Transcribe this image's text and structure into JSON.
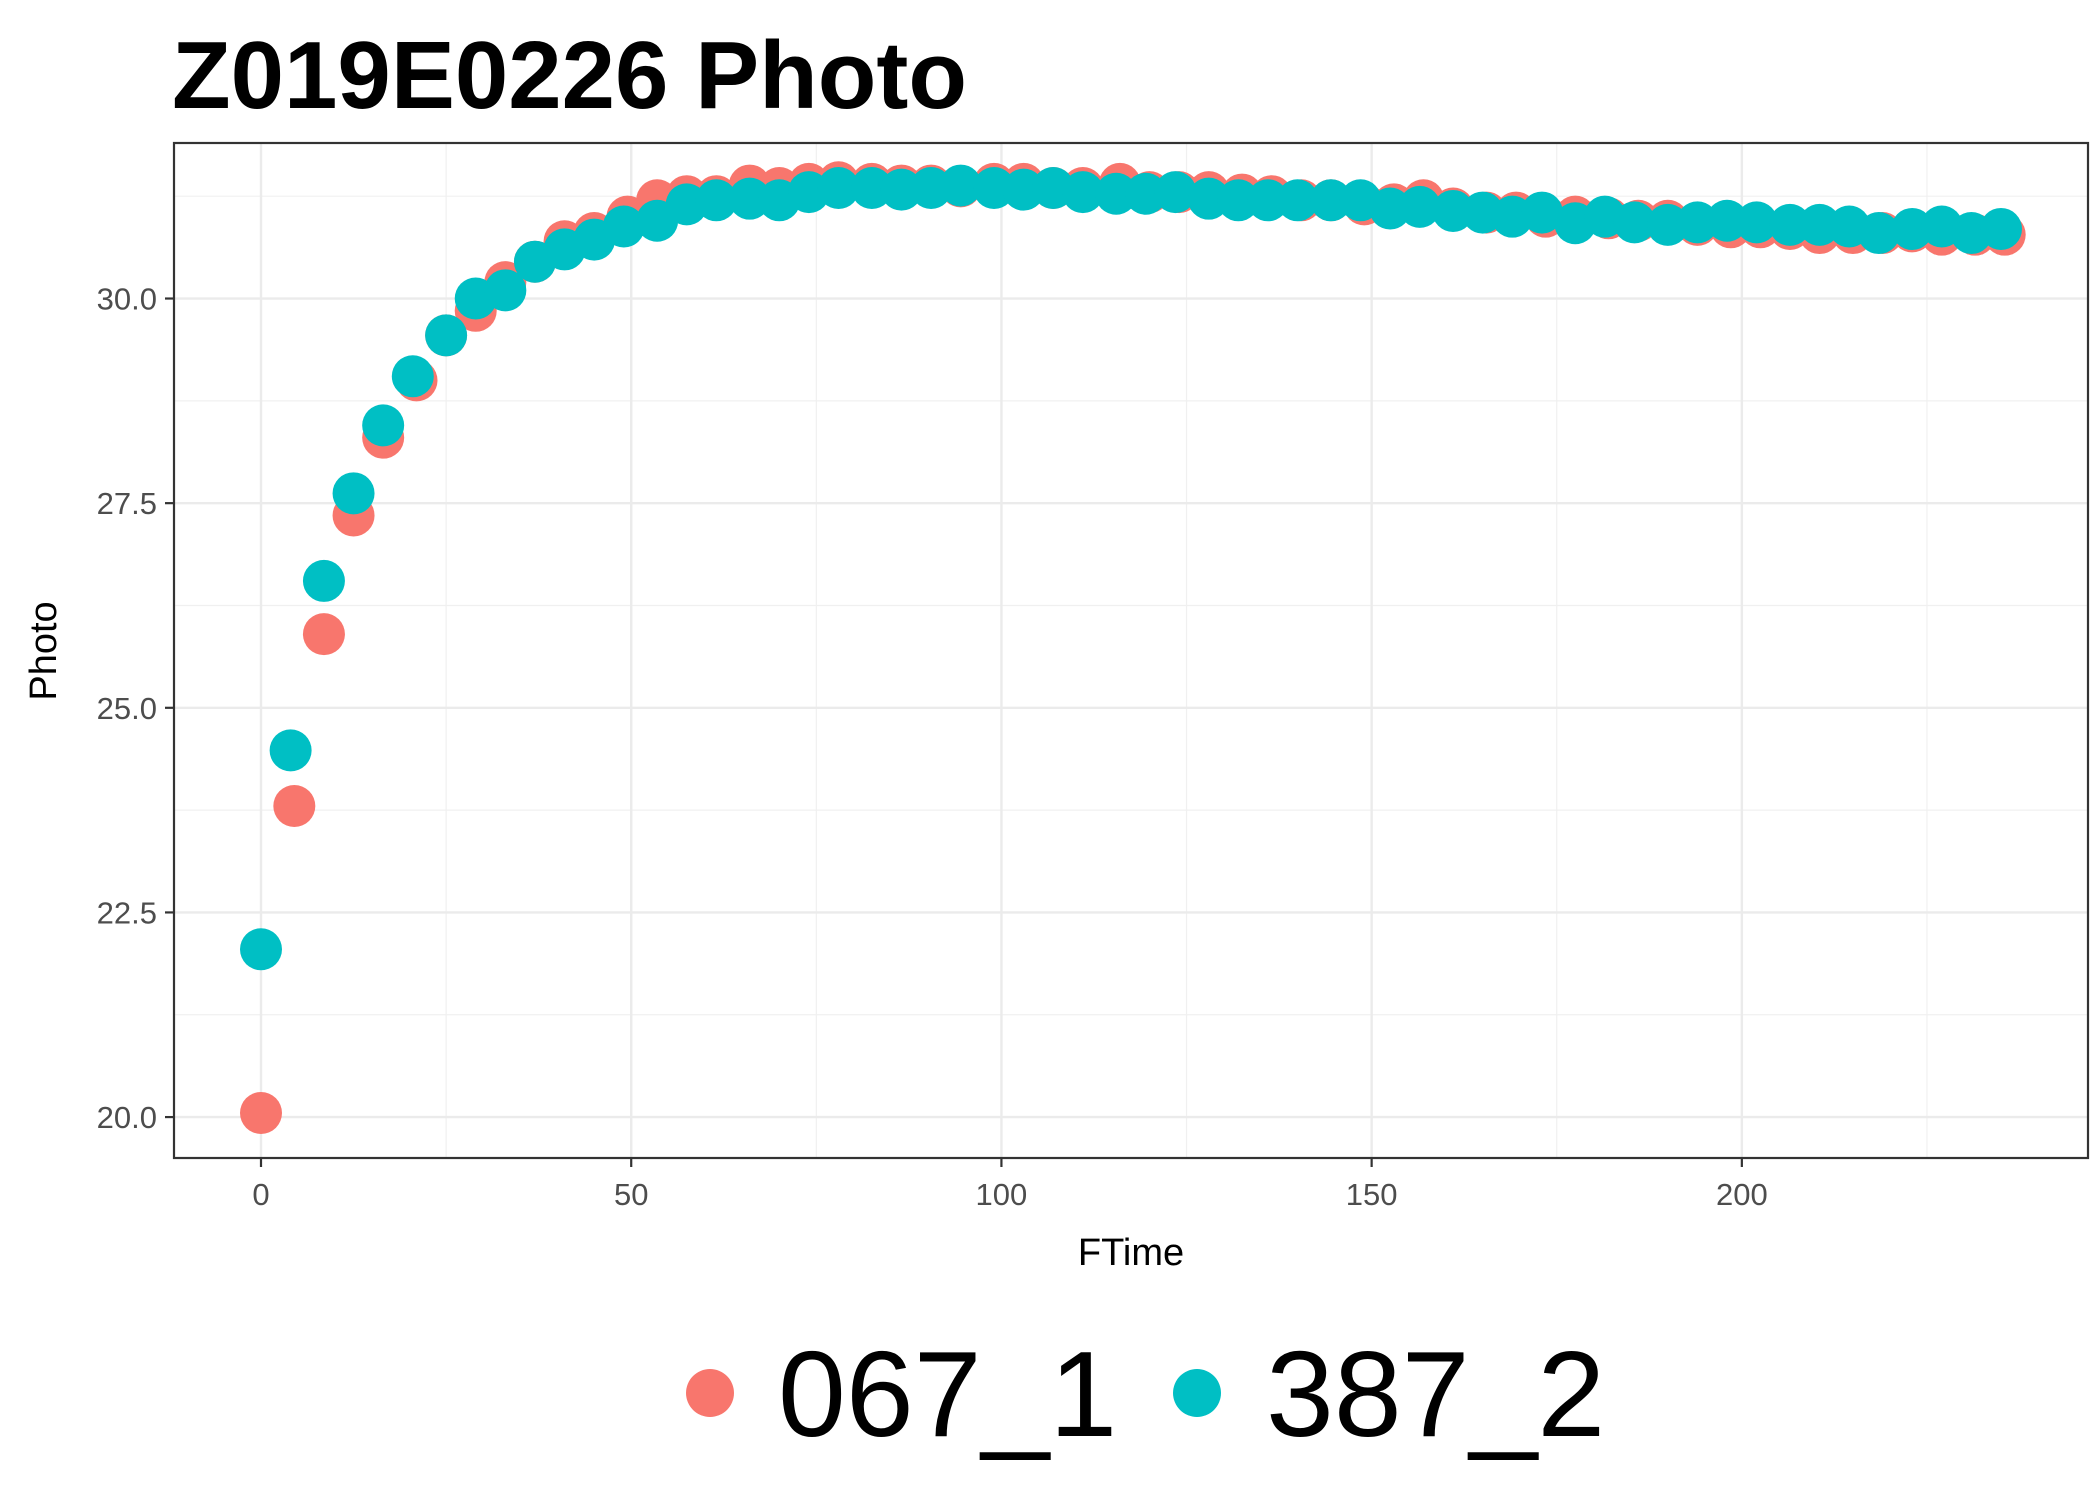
{
  "chart_data": {
    "type": "scatter",
    "title": "Z019E0226 Photo",
    "xlabel": "FTime",
    "ylabel": "Photo",
    "xlim": [
      -11.75,
      246.75
    ],
    "ylim": [
      19.5,
      31.9
    ],
    "x_ticks": [
      0,
      50,
      100,
      150,
      200
    ],
    "x_tick_labels": [
      "0",
      "50",
      "100",
      "150",
      "200"
    ],
    "y_ticks": [
      20.0,
      22.5,
      25.0,
      27.5,
      30.0
    ],
    "y_tick_labels": [
      "20.0",
      "22.5",
      "25.0",
      "27.5",
      "30.0"
    ],
    "grid": true,
    "legend_position": "bottom",
    "series": [
      {
        "name": "067_1",
        "color": "#F8766D",
        "x": [
          0,
          4.5,
          8.5,
          12.5,
          16.5,
          21,
          25,
          29,
          33,
          37,
          41,
          45,
          49.5,
          53.5,
          57.5,
          61.5,
          66,
          70,
          74,
          78,
          82.5,
          86.5,
          90.5,
          94.5,
          99,
          103,
          107,
          111,
          116,
          120,
          124,
          128,
          132.5,
          136.5,
          140.5,
          144.5,
          149,
          153,
          157,
          161,
          165.5,
          169.5,
          173.5,
          177.5,
          182,
          186,
          190,
          194,
          198.5,
          202.5,
          206.5,
          210.5,
          215,
          219,
          223,
          227,
          231.5,
          235.5
        ],
        "y": [
          20.05,
          23.8,
          25.9,
          27.35,
          28.3,
          29.0,
          29.55,
          29.85,
          30.2,
          30.45,
          30.7,
          30.8,
          31.0,
          31.2,
          31.25,
          31.25,
          31.38,
          31.35,
          31.4,
          31.42,
          31.4,
          31.38,
          31.38,
          31.37,
          31.4,
          31.4,
          31.35,
          31.35,
          31.4,
          31.3,
          31.3,
          31.3,
          31.27,
          31.25,
          31.2,
          31.2,
          31.15,
          31.15,
          31.2,
          31.1,
          31.05,
          31.05,
          31.0,
          31.0,
          30.98,
          30.95,
          30.95,
          30.9,
          30.87,
          30.87,
          30.85,
          30.8,
          30.8,
          30.8,
          30.82,
          30.78,
          30.78,
          30.78
        ]
      },
      {
        "name": "387_2",
        "color": "#00BFC4",
        "x": [
          0,
          4,
          8.5,
          12.5,
          16.5,
          20.5,
          25,
          29,
          33,
          37,
          41,
          45,
          49,
          53.5,
          57.5,
          61.5,
          66,
          70,
          74,
          78,
          82.5,
          86.5,
          90.5,
          94.5,
          99,
          103,
          107,
          111,
          115.5,
          119.5,
          123.5,
          128,
          132,
          136,
          140,
          144.5,
          148.5,
          152.5,
          156.5,
          161,
          165,
          169,
          173,
          177.5,
          181.5,
          185.5,
          190,
          194,
          198,
          202,
          206.5,
          210.5,
          214.5,
          218.5,
          223,
          227,
          231,
          235
        ],
        "y": [
          22.05,
          24.48,
          26.55,
          27.62,
          28.45,
          29.05,
          29.55,
          30.0,
          30.1,
          30.45,
          30.6,
          30.72,
          30.88,
          30.95,
          31.15,
          31.2,
          31.22,
          31.2,
          31.3,
          31.35,
          31.35,
          31.33,
          31.35,
          31.38,
          31.35,
          31.33,
          31.35,
          31.3,
          31.28,
          31.28,
          31.3,
          31.22,
          31.2,
          31.2,
          31.2,
          31.2,
          31.2,
          31.1,
          31.12,
          31.07,
          31.05,
          31.0,
          31.05,
          30.92,
          31.0,
          30.93,
          30.9,
          30.93,
          30.95,
          30.93,
          30.9,
          30.9,
          30.88,
          30.8,
          30.85,
          30.88,
          30.8,
          30.85
        ]
      }
    ]
  }
}
